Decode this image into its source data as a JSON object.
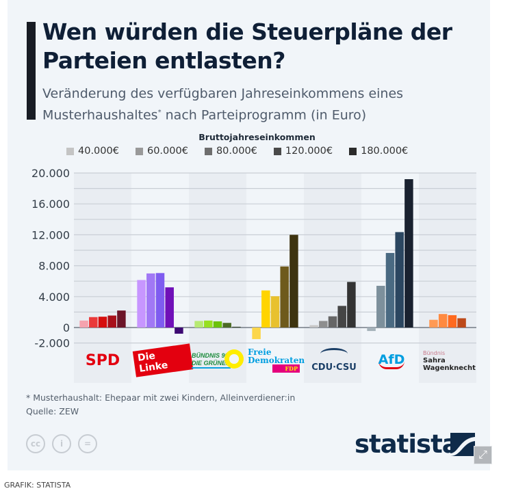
{
  "header": {
    "title": "Wen würden die Steuerpläne der Parteien entlasten?",
    "subtitle_part1": "Veränderung des verfügbaren Jahreseinkommens eines Musterhaushaltes",
    "subtitle_sup": "*",
    "subtitle_part2": " nach Parteiprogramm (in Euro)"
  },
  "legend": {
    "title": "Bruttojahreseinkommen",
    "items": [
      {
        "label": "40.000€",
        "color": "#c4c4c4"
      },
      {
        "label": "60.000€",
        "color": "#999999"
      },
      {
        "label": "80.000€",
        "color": "#6e6e6e"
      },
      {
        "label": "120.000€",
        "color": "#4a4a4a"
      },
      {
        "label": "180.000€",
        "color": "#2b2b2b"
      }
    ]
  },
  "chart_data": {
    "type": "bar",
    "title": "Wen würden die Steuerpläne der Parteien entlasten?",
    "subtitle": "Veränderung des verfügbaren Jahreseinkommens eines Musterhaushaltes* nach Parteiprogramm (in Euro)",
    "xlabel": "",
    "ylabel": "",
    "ylim": [
      -2000,
      20000
    ],
    "yticks": [
      20000,
      16000,
      12000,
      8000,
      4000,
      0,
      -2000
    ],
    "ytick_labels": [
      "20.000",
      "16.000",
      "12.000",
      "8.000",
      "4.000",
      "0",
      "-2.000"
    ],
    "grid": true,
    "legend_position": "top-center",
    "categories": [
      "SPD",
      "Die Linke",
      "Bündnis 90/Die Grünen",
      "FDP",
      "CDU/CSU",
      "AfD",
      "Bündnis Sahra Wagenknecht"
    ],
    "series": [
      {
        "name": "40.000€",
        "values": [
          900,
          6150,
          850,
          -1500,
          300,
          -450,
          1000
        ]
      },
      {
        "name": "60.000€",
        "values": [
          1350,
          7000,
          900,
          4800,
          850,
          5400,
          1750
        ]
      },
      {
        "name": "80.000€",
        "values": [
          1400,
          7050,
          800,
          4050,
          1450,
          9650,
          1600
        ]
      },
      {
        "name": "120.000€",
        "values": [
          1550,
          5200,
          600,
          7900,
          2800,
          12350,
          1200
        ]
      },
      {
        "name": "180.000€",
        "values": [
          2200,
          -800,
          100,
          12000,
          5900,
          19200,
          null
        ]
      }
    ],
    "party_colors": [
      [
        "#f5a3ae",
        "#ea3a3a",
        "#d60d0d",
        "#a8101a",
        "#6c1528"
      ],
      [
        "#c796ff",
        "#a178f5",
        "#7f5cf0",
        "#7010b8",
        "#3d0a73"
      ],
      [
        "#b7ea73",
        "#97e021",
        "#6cc20a",
        "#4c6b25",
        "#3a4a30"
      ],
      [
        "#fcd64a",
        "#ffd400",
        "#e8c12e",
        "#6e5a1c",
        "#3e3410"
      ],
      [
        "#c6c6c6",
        "#8e8e8e",
        "#666666",
        "#454545",
        "#333333"
      ],
      [
        "#a5b2ba",
        "#7d909c",
        "#4a6a82",
        "#2b4660",
        "#1a2230"
      ],
      [
        "#ff9a55",
        "#ff8a40",
        "#ff6a1f",
        "#bd4a1a",
        null
      ]
    ]
  },
  "party_labels": {
    "spd": "SPD",
    "linke": "Die Linke",
    "gruene_line1": "BÜNDNIS 90",
    "gruene_line2": "DIE GRÜNEN",
    "fdp_line1": "Freie",
    "fdp_line2": "Demokraten",
    "fdp_tag": "FDP",
    "cdu": "CDU·CSU",
    "afd": "AfD",
    "bsw_line1": "Bündnis",
    "bsw_line2": "Sahra",
    "bsw_line3": "Wagenknecht"
  },
  "footer": {
    "note": "* Musterhaushalt: Ehepaar mit zwei Kindern, Alleinverdiener:in",
    "source": "Quelle: ZEW",
    "brand": "statista",
    "cc_icons": [
      "cc",
      "by",
      "nd"
    ],
    "expand_icon": "expand-icon",
    "credit": "GRAFIK: STATISTA"
  }
}
